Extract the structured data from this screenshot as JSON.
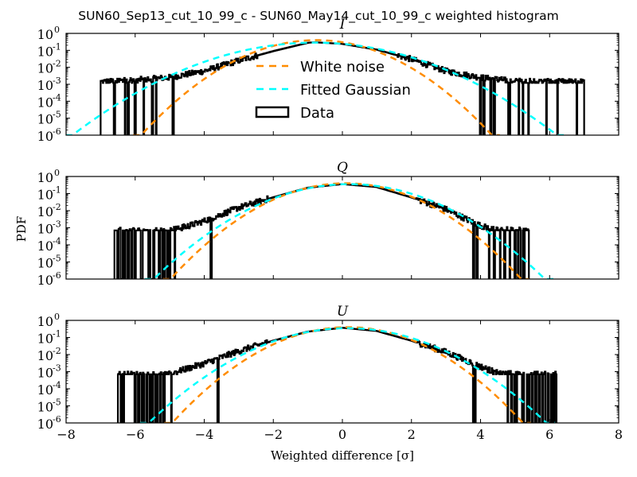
{
  "chart_data": {
    "type": "line",
    "title": "SUN60_Sep13_cut_10_99_c - SUN60_May14_cut_10_99_c weighted histogram",
    "xlabel": "Weighted difference [σ]",
    "ylabel": "PDF",
    "xlim": [
      -8,
      8
    ],
    "ylim": [
      1e-06,
      1
    ],
    "yscale": "log",
    "xticks": [
      -8,
      -6,
      -4,
      -2,
      0,
      2,
      4,
      6,
      8
    ],
    "xtick_labels": [
      "−8",
      "−6",
      "−4",
      "−2",
      "0",
      "2",
      "4",
      "6",
      "8"
    ],
    "yticks_exponents": [
      0,
      -1,
      -2,
      -3,
      -4,
      -5,
      -6
    ],
    "ytick_base": "10",
    "legend": {
      "placement": "center (top panel)",
      "entries": [
        {
          "label": "White noise",
          "style": "dashed",
          "color": "#ff8c00"
        },
        {
          "label": "Fitted Gaussian",
          "style": "dashed",
          "color": "#00ffff"
        },
        {
          "label": "Data",
          "style": "histogram-step",
          "color": "#000000"
        }
      ]
    },
    "panels": [
      {
        "title": "I",
        "white_noise": {
          "mu": -0.75,
          "sigma": 1.0
        },
        "fitted_gaussian": {
          "mu": -0.8,
          "sigma": 1.4
        },
        "data": {
          "range": [
            -7.0,
            7.0
          ],
          "single_count_level": 0.0012,
          "envelope_x": [
            -7.0,
            -6.0,
            -5.0,
            -4.0,
            -3.0,
            -2.0,
            -1.0,
            -0.8,
            0.0,
            1.0,
            2.0,
            3.0,
            4.0,
            5.0,
            6.0,
            7.0
          ],
          "envelope_pdf": [
            0.0014,
            0.0018,
            0.0025,
            0.006,
            0.025,
            0.09,
            0.28,
            0.3,
            0.24,
            0.11,
            0.03,
            0.006,
            0.0025,
            0.0015,
            0.0014,
            0.0014
          ],
          "gaps_x": [
            -6.6,
            -6.2,
            -6.0,
            -5.75,
            -5.5,
            -4.9,
            4.0,
            4.1,
            4.3,
            4.4
          ]
        }
      },
      {
        "title": "Q",
        "white_noise": {
          "mu": 0.1,
          "sigma": 1.0
        },
        "fitted_gaussian": {
          "mu": 0.2,
          "sigma": 1.12
        },
        "data": {
          "range": [
            -6.6,
            5.4
          ],
          "single_count_level": 0.0007,
          "envelope_x": [
            -6.6,
            -5.0,
            -4.5,
            -4.0,
            -3.0,
            -2.0,
            -1.0,
            0.0,
            1.0,
            2.0,
            3.0,
            3.8,
            4.3,
            5.4
          ],
          "envelope_pdf": [
            0.0007,
            0.0007,
            0.0012,
            0.0025,
            0.015,
            0.06,
            0.22,
            0.36,
            0.24,
            0.06,
            0.012,
            0.002,
            0.0008,
            0.0007
          ],
          "gaps_x": [
            -6.5,
            -6.4,
            -6.3,
            -6.2,
            -6.1,
            -6.0,
            -5.8,
            -5.6,
            -5.45,
            -5.3,
            -5.2,
            -5.0,
            -3.8,
            3.8,
            3.9,
            4.4,
            4.7,
            4.85,
            5.0,
            5.2
          ]
        }
      },
      {
        "title": "U",
        "white_noise": {
          "mu": 0.15,
          "sigma": 1.0
        },
        "fitted_gaussian": {
          "mu": 0.15,
          "sigma": 1.14
        },
        "data": {
          "range": [
            -6.5,
            6.2
          ],
          "single_count_level": 0.0007,
          "envelope_x": [
            -6.5,
            -5.0,
            -4.5,
            -4.0,
            -3.0,
            -2.0,
            -1.0,
            0.0,
            1.0,
            2.0,
            3.0,
            4.0,
            4.5,
            5.5,
            6.2
          ],
          "envelope_pdf": [
            0.0007,
            0.0007,
            0.0015,
            0.003,
            0.016,
            0.065,
            0.22,
            0.37,
            0.24,
            0.065,
            0.014,
            0.002,
            0.0008,
            0.0007,
            0.0007
          ],
          "gaps_x": [
            -6.4,
            -6.0,
            -5.9,
            -5.7,
            -5.5,
            -5.35,
            -5.15,
            -4.95,
            -3.6,
            3.8,
            3.85,
            4.9,
            5.0,
            5.3,
            5.4,
            5.5,
            5.6,
            5.7,
            5.8,
            5.9,
            6.0
          ]
        }
      }
    ]
  }
}
